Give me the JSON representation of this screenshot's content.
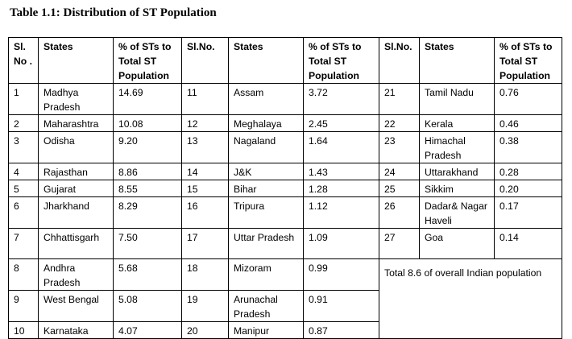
{
  "title": "Table 1.1: Distribution  of ST Population",
  "headers": {
    "slno_a": "Sl. No .",
    "states_a": "States",
    "pct_a": "% of STs to Total ST Population",
    "slno_b": "Sl.No.",
    "states_b": "States",
    "pct_b": "% of STs to Total ST Population",
    "slno_c": "Sl.No.",
    "states_c": "States",
    "pct_c": "% of STs to Total ST Population"
  },
  "rows": [
    {
      "a": [
        "1",
        "Madhya Pradesh",
        "14.69"
      ],
      "b": [
        "11",
        "Assam",
        "3.72"
      ],
      "c": [
        "21",
        "Tamil Nadu",
        "0.76"
      ]
    },
    {
      "a": [
        "2",
        "Maharashtra",
        "10.08"
      ],
      "b": [
        "12",
        "Meghalaya",
        "2.45"
      ],
      "c": [
        "22",
        "Kerala",
        "0.46"
      ]
    },
    {
      "a": [
        "3",
        "Odisha",
        "9.20"
      ],
      "b": [
        "13",
        "Nagaland",
        "1.64"
      ],
      "c": [
        "23",
        "Himachal Pradesh",
        "0.38"
      ]
    },
    {
      "a": [
        "4",
        "Rajasthan",
        "8.86"
      ],
      "b": [
        "14",
        "J&K",
        "1.43"
      ],
      "c": [
        "24",
        "Uttarakhand",
        "0.28"
      ]
    },
    {
      "a": [
        "5",
        "Gujarat",
        "8.55"
      ],
      "b": [
        "15",
        "Bihar",
        "1.28"
      ],
      "c": [
        "25",
        "Sikkim",
        "0.20"
      ]
    },
    {
      "a": [
        "6",
        "Jharkhand",
        "8.29"
      ],
      "b": [
        "16",
        "Tripura",
        "1.12"
      ],
      "c": [
        "26",
        "Dadar& Nagar Haveli",
        "0.17"
      ]
    },
    {
      "a": [
        "7",
        "Chhattisgarh",
        "7.50"
      ],
      "b": [
        "17",
        "Uttar Pradesh",
        "1.09"
      ],
      "c": [
        "27",
        "Goa",
        "0.14"
      ]
    },
    {
      "a": [
        "8",
        "Andhra Pradesh",
        "5.68"
      ],
      "b": [
        "18",
        "Mizoram",
        "0.99"
      ]
    },
    {
      "a": [
        "9",
        "West Bengal",
        "5.08"
      ],
      "b": [
        "19",
        "Arunachal Pradesh",
        "0.91"
      ]
    },
    {
      "a": [
        "10",
        "Karnataka",
        "4.07"
      ],
      "b": [
        "20",
        "Manipur",
        "0.87"
      ]
    }
  ],
  "note": "Total 8.6 of overall Indian population"
}
